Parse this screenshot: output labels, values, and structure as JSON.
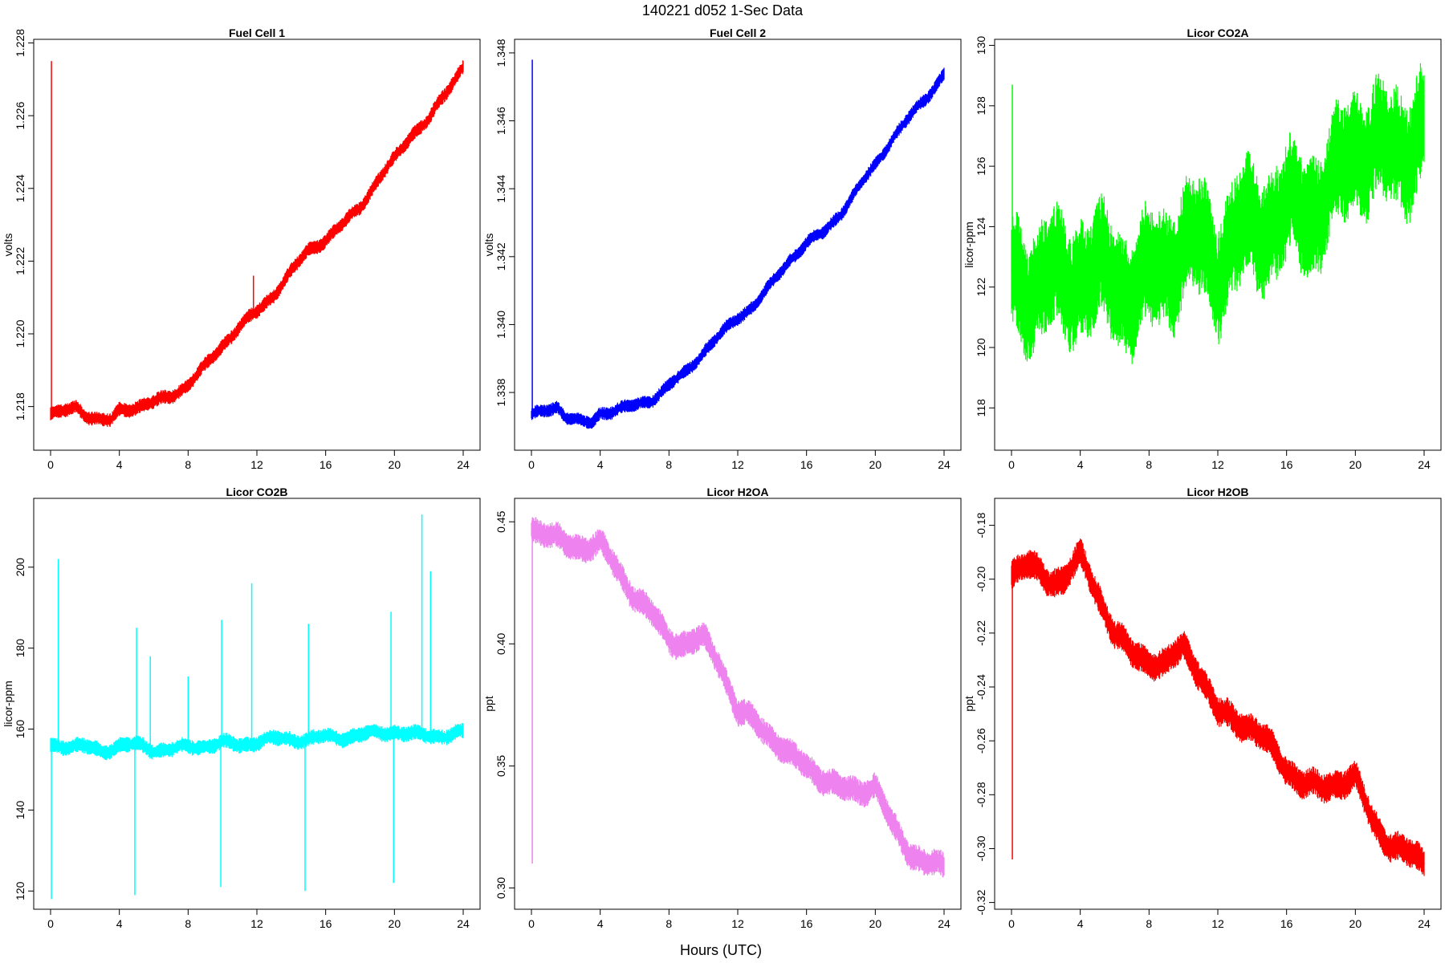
{
  "figure": {
    "title": "140221    d052    1-Sec Data",
    "xlabel": "Hours (UTC)"
  },
  "chart_data": [
    {
      "type": "line",
      "title": "Fuel Cell 1",
      "ylabel": "volts",
      "xlim": [
        0,
        24
      ],
      "ylim": [
        1.2168,
        1.2281
      ],
      "xticks": [
        0,
        4,
        8,
        12,
        16,
        20,
        24
      ],
      "yticks": [
        1.218,
        1.22,
        1.222,
        1.224,
        1.226,
        1.228
      ],
      "ytick_labels": [
        "1.218",
        "1.220",
        "1.222",
        "1.224",
        "1.226",
        "1.228"
      ],
      "color": "#ff0000",
      "grid": false,
      "x": [
        0,
        0.5,
        1,
        1.5,
        2,
        2.5,
        3,
        3.5,
        4,
        5,
        6,
        7,
        8,
        9,
        10,
        11,
        12,
        13,
        14,
        15,
        16,
        17,
        18,
        19,
        20,
        21,
        22,
        23,
        24
      ],
      "y": [
        1.2178,
        1.2178,
        1.2179,
        1.218,
        1.2178,
        1.2177,
        1.2176,
        1.2176,
        1.2179,
        1.218,
        1.2181,
        1.2183,
        1.2186,
        1.2191,
        1.2197,
        1.2202,
        1.2206,
        1.2211,
        1.2217,
        1.2223,
        1.2226,
        1.223,
        1.2235,
        1.2242,
        1.2248,
        1.2255,
        1.2259,
        1.2266,
        1.2274
      ],
      "noise": 0.00016,
      "spikes": [
        {
          "x": 0.05,
          "y": 1.2275
        },
        {
          "x": 11.8,
          "y": 1.2216
        }
      ]
    },
    {
      "type": "line",
      "title": "Fuel Cell 2",
      "ylabel": "volts",
      "xlim": [
        0,
        24
      ],
      "ylim": [
        1.3363,
        1.3484
      ],
      "xticks": [
        0,
        4,
        8,
        12,
        16,
        20,
        24
      ],
      "yticks": [
        1.338,
        1.34,
        1.342,
        1.344,
        1.346,
        1.348
      ],
      "ytick_labels": [
        "1.338",
        "1.340",
        "1.342",
        "1.344",
        "1.346",
        "1.348"
      ],
      "color": "#0000ff",
      "grid": false,
      "x": [
        0,
        0.5,
        1,
        1.5,
        2,
        2.5,
        3,
        3.5,
        4,
        5,
        6,
        7,
        8,
        9,
        10,
        11,
        12,
        13,
        14,
        15,
        16,
        17,
        18,
        19,
        20,
        21,
        22,
        23,
        24
      ],
      "y": [
        1.3373,
        1.3374,
        1.3375,
        1.3376,
        1.3373,
        1.3372,
        1.3371,
        1.3371,
        1.3374,
        1.3375,
        1.3376,
        1.3378,
        1.3382,
        1.3386,
        1.3392,
        1.3397,
        1.3402,
        1.3406,
        1.3412,
        1.3419,
        1.3424,
        1.3427,
        1.3433,
        1.344,
        1.3447,
        1.3455,
        1.3461,
        1.3467,
        1.3474
      ],
      "noise": 0.00016,
      "spikes": [
        {
          "x": 0.05,
          "y": 1.3478
        }
      ]
    },
    {
      "type": "line",
      "title": "Licor CO2A",
      "ylabel": "licor-ppm",
      "xlim": [
        0,
        24
      ],
      "ylim": [
        116.6,
        130.2
      ],
      "xticks": [
        0,
        4,
        8,
        12,
        16,
        20,
        24
      ],
      "yticks": [
        118,
        120,
        122,
        124,
        126,
        128,
        130
      ],
      "ytick_labels": [
        "118",
        "120",
        "122",
        "124",
        "126",
        "128",
        "130"
      ],
      "color": "#00ff00",
      "grid": false,
      "x": [
        0,
        1,
        2,
        3,
        4,
        5,
        6,
        7,
        8,
        9,
        10,
        11,
        12,
        13,
        14,
        15,
        16,
        17,
        18,
        19,
        20,
        21,
        22,
        23,
        24
      ],
      "y": [
        122.0,
        122.1,
        122.4,
        122.0,
        122.6,
        122.4,
        122.2,
        122.0,
        122.2,
        122.8,
        123.4,
        123.4,
        122.8,
        123.6,
        124.0,
        124.2,
        124.4,
        124.6,
        124.8,
        125.6,
        126.8,
        126.6,
        126.4,
        126.8,
        127.2
      ],
      "noise": 1.6,
      "spikes": [
        {
          "x": 0.05,
          "y": 128.7
        }
      ]
    },
    {
      "type": "line",
      "title": "Licor CO2B",
      "ylabel": "licor-ppm",
      "xlim": [
        0,
        24
      ],
      "ylim": [
        115.5,
        217.0
      ],
      "xticks": [
        0,
        4,
        8,
        12,
        16,
        20,
        24
      ],
      "yticks": [
        120,
        140,
        160,
        180,
        200
      ],
      "ytick_labels": [
        "120",
        "140",
        "160",
        "180",
        "200"
      ],
      "color": "#00ffff",
      "grid": false,
      "x": [
        0,
        1,
        2,
        3,
        4,
        5,
        6,
        7,
        8,
        9,
        10,
        11,
        12,
        13,
        14,
        15,
        16,
        17,
        18,
        19,
        20,
        21,
        22,
        23,
        24
      ],
      "y": [
        156.0,
        156.0,
        155.5,
        154.5,
        156.0,
        156.0,
        155.0,
        155.0,
        155.5,
        156.0,
        156.5,
        156.0,
        157.0,
        157.5,
        157.5,
        157.5,
        158.0,
        158.0,
        158.5,
        159.0,
        159.5,
        158.5,
        158.5,
        158.5,
        159.0
      ],
      "noise": 1.6,
      "spikes": [
        {
          "x": 0.05,
          "y": 118.0
        },
        {
          "x": 0.45,
          "y": 202.0
        },
        {
          "x": 4.9,
          "y": 119.0
        },
        {
          "x": 5.0,
          "y": 185.0
        },
        {
          "x": 5.8,
          "y": 178.0
        },
        {
          "x": 8.0,
          "y": 173.0
        },
        {
          "x": 9.9,
          "y": 121.0
        },
        {
          "x": 9.95,
          "y": 187.0
        },
        {
          "x": 11.7,
          "y": 196.0
        },
        {
          "x": 14.8,
          "y": 120.0
        },
        {
          "x": 15.0,
          "y": 186.0
        },
        {
          "x": 19.8,
          "y": 189.0
        },
        {
          "x": 19.95,
          "y": 122.0
        },
        {
          "x": 21.6,
          "y": 213.0
        },
        {
          "x": 22.1,
          "y": 199.0
        }
      ]
    },
    {
      "type": "line",
      "title": "Licor H2OA",
      "ylabel": "ppt",
      "xlim": [
        0,
        24
      ],
      "ylim": [
        0.2913,
        0.4596
      ],
      "xticks": [
        0,
        4,
        8,
        12,
        16,
        20,
        24
      ],
      "yticks": [
        0.3,
        0.35,
        0.4,
        0.45
      ],
      "ytick_labels": [
        "0.30",
        "0.35",
        "0.40",
        "0.45"
      ],
      "color": "#ee82ee",
      "grid": false,
      "x": [
        0,
        1,
        2,
        3,
        4,
        5,
        6,
        7,
        8,
        9,
        10,
        11,
        12,
        13,
        14,
        15,
        16,
        17,
        18,
        19,
        20,
        21,
        22,
        23,
        24
      ],
      "y": [
        0.448,
        0.445,
        0.44,
        0.44,
        0.441,
        0.43,
        0.42,
        0.412,
        0.402,
        0.4,
        0.402,
        0.392,
        0.372,
        0.368,
        0.362,
        0.354,
        0.35,
        0.345,
        0.34,
        0.34,
        0.342,
        0.325,
        0.315,
        0.31,
        0.308
      ],
      "noise": 0.0045,
      "spikes": [
        {
          "x": 0.05,
          "y": 0.31
        }
      ]
    },
    {
      "type": "line",
      "title": "Licor H2OB",
      "ylabel": "ppt",
      "xlim": [
        0,
        24
      ],
      "ylim": [
        -0.3225,
        -0.17
      ],
      "xticks": [
        0,
        4,
        8,
        12,
        16,
        20,
        24
      ],
      "yticks": [
        -0.32,
        -0.3,
        -0.28,
        -0.26,
        -0.24,
        -0.22,
        -0.2,
        -0.18
      ],
      "ytick_labels": [
        "-0.32",
        "-0.30",
        "-0.28",
        "-0.26",
        "-0.24",
        "-0.22",
        "-0.20",
        "-0.18"
      ],
      "color": "#ff0000",
      "grid": false,
      "x": [
        0,
        1,
        2,
        3,
        4,
        5,
        6,
        7,
        8,
        9,
        10,
        11,
        12,
        13,
        14,
        15,
        16,
        17,
        18,
        19,
        20,
        21,
        22,
        23,
        24
      ],
      "y": [
        -0.197,
        -0.195,
        -0.2,
        -0.2,
        -0.192,
        -0.205,
        -0.22,
        -0.228,
        -0.23,
        -0.232,
        -0.225,
        -0.235,
        -0.25,
        -0.252,
        -0.255,
        -0.262,
        -0.27,
        -0.276,
        -0.278,
        -0.275,
        -0.274,
        -0.29,
        -0.298,
        -0.302,
        -0.305
      ],
      "noise": 0.0045,
      "spikes": [
        {
          "x": 0.05,
          "y": -0.304
        }
      ]
    }
  ]
}
